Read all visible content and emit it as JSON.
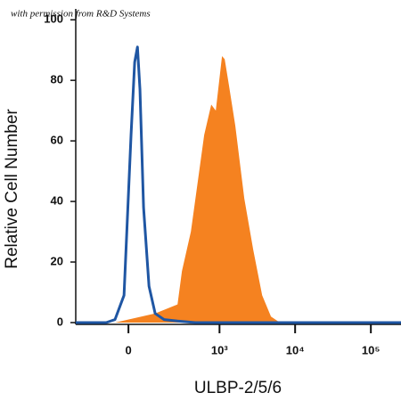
{
  "chart_data": {
    "type": "line",
    "annotation": "with permission from R&D Systems",
    "y_label": "Relative Cell Number",
    "x_label": "ULBP-2/5/6",
    "xscale": "biexponential",
    "xlim": [
      -300,
      250000
    ],
    "xticks": [
      0,
      {
        "value": 1000,
        "label": "10³"
      },
      {
        "value": 10000,
        "label": "10⁴"
      },
      {
        "value": 100000,
        "label": "10⁵"
      }
    ],
    "ylim": [
      0,
      103
    ],
    "yticks": [
      0,
      20,
      40,
      60,
      80,
      100
    ],
    "series": [
      {
        "color": "#f58220",
        "fill": true,
        "x": [
          -300,
          -53,
          114,
          266,
          308,
          411,
          624,
          776,
          892,
          1080,
          1172,
          1342,
          1620,
          2130,
          2800,
          3670,
          4800,
          6300,
          250000
        ],
        "values": [
          0,
          0,
          3,
          6,
          17,
          30,
          62,
          72,
          70,
          88,
          87,
          78,
          65,
          41,
          24,
          9,
          2,
          0,
          0
        ]
      },
      {
        "color": "#1f56a3",
        "fill": false,
        "x": [
          -300,
          -92,
          -53,
          -17,
          10,
          24,
          35,
          45,
          60,
          84,
          114,
          165,
          266,
          471,
          250000
        ],
        "values": [
          0,
          0,
          1,
          9,
          62,
          86,
          91,
          77,
          38,
          12,
          3,
          1,
          0.5,
          0,
          0
        ]
      }
    ]
  }
}
